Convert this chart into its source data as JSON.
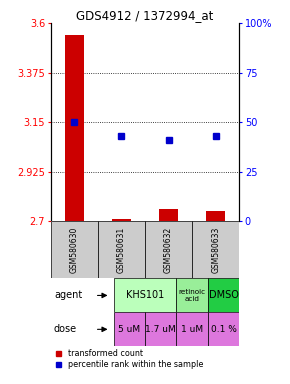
{
  "title": "GDS4912 / 1372994_at",
  "samples": [
    "GSM580630",
    "GSM580631",
    "GSM580632",
    "GSM580633"
  ],
  "bar_values": [
    3.545,
    2.712,
    2.755,
    2.745
  ],
  "percentile_pct": [
    50,
    43,
    41,
    43
  ],
  "ylim_left": [
    2.7,
    3.6
  ],
  "ylim_right": [
    0,
    100
  ],
  "yticks_left": [
    2.7,
    2.925,
    3.15,
    3.375,
    3.6
  ],
  "yticks_right": [
    0,
    25,
    50,
    75,
    100
  ],
  "ytick_labels_left": [
    "2.7",
    "2.925",
    "3.15",
    "3.375",
    "3.6"
  ],
  "ytick_labels_right": [
    "0",
    "25",
    "50",
    "75",
    "100%"
  ],
  "bar_color": "#cc0000",
  "percentile_color": "#0000cc",
  "dose_labels": [
    "5 uM",
    "1.7 uM",
    "1 uM",
    "0.1 %"
  ],
  "dose_color": "#dd77dd",
  "sample_bg": "#cccccc",
  "khs_color": "#bbffbb",
  "ret_color": "#99ee99",
  "dmso_color": "#22cc44",
  "legend_bar_color": "#cc0000",
  "legend_pct_color": "#0000cc"
}
